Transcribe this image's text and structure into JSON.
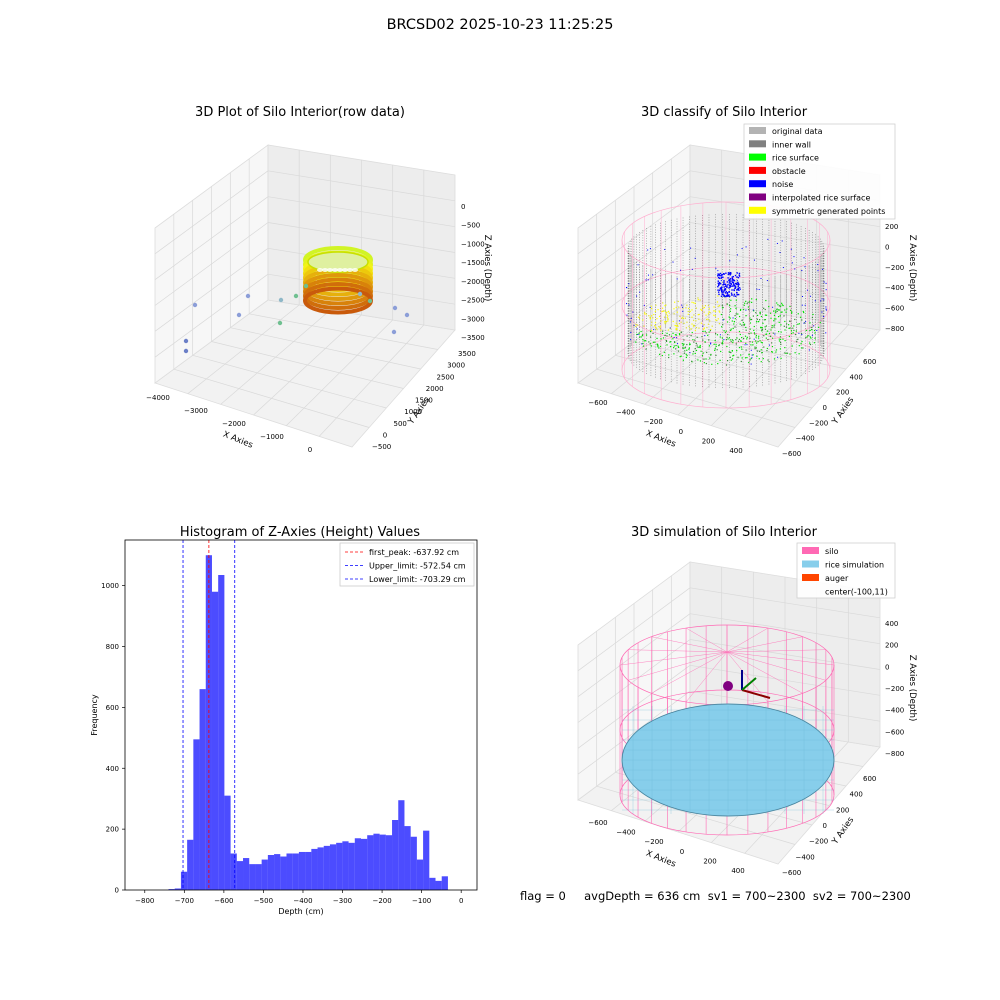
{
  "figure": {
    "suptitle": "BRCSD02 2025-10-23 11:25:25",
    "footer": "flag = 0     avgDepth = 636 cm  sv1 = 700~2300  sv2 = 700~2300"
  },
  "chart_data": [
    {
      "type": "scatter",
      "title": "3D Plot of Silo Interior(row data)",
      "xlabel": "X Axies",
      "ylabel": "Y Axies",
      "zlabel": "Z Axies (Depth)",
      "x_ticks": [
        "−4000",
        "−3000",
        "−2000",
        "−1000",
        "0"
      ],
      "y_ticks": [
        "−500",
        "0",
        "500",
        "1000",
        "1500",
        "2000",
        "2500",
        "3000",
        "3500"
      ],
      "z_ticks": [
        "0",
        "−500",
        "−1000",
        "−1500",
        "−2000",
        "−2500",
        "−3000",
        "−3500"
      ]
    },
    {
      "type": "scatter",
      "title": "3D classify of Silo Interior",
      "xlabel": "X Axies",
      "ylabel": "Y Axies",
      "zlabel": "Z Axies (Depth)",
      "x_ticks": [
        "−600",
        "−400",
        "−200",
        "0",
        "200",
        "400"
      ],
      "y_ticks": [
        "−600",
        "−400",
        "−200",
        "0",
        "200",
        "400",
        "600"
      ],
      "z_ticks": [
        "200",
        "0",
        "−200",
        "−400",
        "−600",
        "−800"
      ],
      "legend": [
        {
          "label": "original data",
          "color": "#b3b3b3"
        },
        {
          "label": "inner wall",
          "color": "#808080"
        },
        {
          "label": "rice surface",
          "color": "#00ff00"
        },
        {
          "label": "obstacle",
          "color": "#ff0000"
        },
        {
          "label": "noise",
          "color": "#0000ff"
        },
        {
          "label": "interpolated rice surface",
          "color": "#800080"
        },
        {
          "label": "symmetric generated points",
          "color": "#ffff00"
        }
      ]
    },
    {
      "type": "bar",
      "title": "Histogram of Z-Axies (Height) Values",
      "xlabel": "Depth (cm)",
      "ylabel": "Frequency",
      "xlim": [
        -850,
        40
      ],
      "ylim": [
        0,
        1150
      ],
      "x_ticks": [
        -800,
        -700,
        -600,
        -500,
        -400,
        -300,
        -200,
        -100,
        0
      ],
      "x_tick_labels": [
        "−800",
        "−700",
        "−600",
        "−500",
        "−400",
        "−300",
        "−200",
        "−100",
        "0"
      ],
      "y_ticks": [
        0,
        200,
        400,
        600,
        800,
        1000
      ],
      "y_tick_labels": [
        "0",
        "200",
        "400",
        "600",
        "800",
        "1000"
      ],
      "bin_width": 15.7,
      "bin_starts": [
        -740,
        -724.3,
        -708.6,
        -692.9,
        -677.2,
        -661.5,
        -645.8,
        -630.1,
        -614.4,
        -598.7,
        -583.0,
        -567.3,
        -551.6,
        -535.9,
        -520.2,
        -504.5,
        -488.8,
        -473.1,
        -457.4,
        -441.7,
        -426.0,
        -410.3,
        -394.6,
        -378.9,
        -363.2,
        -347.5,
        -331.8,
        -316.1,
        -300.4,
        -284.7,
        -269.0,
        -253.3,
        -237.6,
        -221.9,
        -206.2,
        -190.5,
        -174.8,
        -159.1,
        -143.4,
        -127.7,
        -112.0,
        -96.3,
        -80.6,
        -64.9,
        -49.2,
        -33.5,
        -17.8,
        -2.1
      ],
      "counts": [
        3,
        5,
        60,
        165,
        495,
        660,
        1100,
        980,
        1035,
        310,
        120,
        95,
        105,
        85,
        85,
        100,
        115,
        118,
        110,
        120,
        120,
        125,
        125,
        135,
        140,
        145,
        150,
        155,
        160,
        155,
        170,
        168,
        180,
        185,
        182,
        180,
        230,
        295,
        210,
        175,
        100,
        195,
        40,
        30,
        45,
        0,
        0,
        0
      ],
      "bar_color": "#0000ff",
      "vlines": [
        {
          "label": "first_peak: -637.92 cm",
          "x": -637.92,
          "color": "#ff0000"
        },
        {
          "label": "Upper_limit: -572.54 cm",
          "x": -572.54,
          "color": "#0000ff"
        },
        {
          "label": "Lower_limit: -703.29 cm",
          "x": -703.29,
          "color": "#0000ff"
        }
      ]
    },
    {
      "type": "scatter",
      "title": "3D simulation of Silo Interior",
      "xlabel": "X Axies",
      "ylabel": "Y Axies",
      "zlabel": "Z Axies (Depth)",
      "x_ticks": [
        "−600",
        "−400",
        "−200",
        "0",
        "200",
        "400"
      ],
      "y_ticks": [
        "−600",
        "−400",
        "−200",
        "0",
        "200",
        "400",
        "600"
      ],
      "z_ticks": [
        "400",
        "200",
        "0",
        "−200",
        "−400",
        "−600",
        "−800"
      ],
      "legend": [
        {
          "label": "silo",
          "color": "#ff69b4"
        },
        {
          "label": "rice simulation",
          "color": "#87ceeb"
        },
        {
          "label": "auger",
          "color": "#ff4500"
        },
        {
          "label": "center(-100,11)",
          "color": ""
        }
      ]
    }
  ]
}
